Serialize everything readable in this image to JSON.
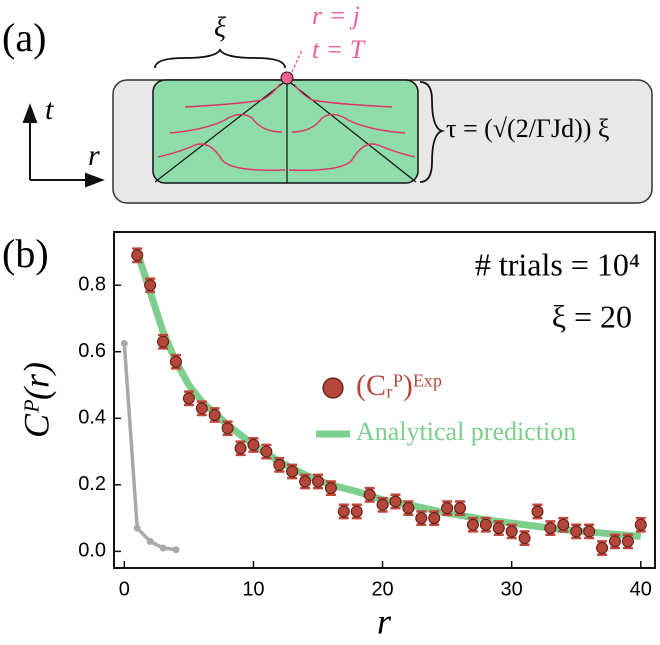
{
  "diagram": {
    "label": "(a)",
    "xi": "ξ",
    "point_label": [
      "r = j",
      "t = T"
    ],
    "t_axis": "t",
    "r_axis": "r",
    "tau": "τ = (√(2/ΓJd)) ξ"
  },
  "chart_data": {
    "type": "scatter",
    "panel_label": "(b)",
    "xlabel": "r",
    "ylabel": "Cᴾ(r)",
    "annotations": [
      "# trials = 10⁴",
      "ξ = 20"
    ],
    "xlim": [
      -0.8,
      41.1
    ],
    "ylim": [
      -0.05,
      0.96
    ],
    "xticks": [
      0,
      10,
      20,
      30,
      40
    ],
    "yticks": [
      {
        "value": 0,
        "label": "0.0"
      },
      0.2,
      0.4,
      0.6,
      0.8
    ],
    "series": [
      {
        "name": "(Cᵣᴾ)ᴱˣᵖ",
        "color": "#b5473a",
        "style": "points",
        "x": [
          1,
          2,
          3,
          4,
          5,
          6,
          7,
          8,
          9,
          10,
          11,
          12,
          13,
          14,
          15,
          16,
          17,
          18,
          19,
          20,
          21,
          22,
          23,
          24,
          25,
          26,
          27,
          28,
          29,
          30,
          31,
          32,
          33,
          34,
          35,
          36,
          37,
          38,
          39,
          40
        ],
        "values": [
          0.89,
          0.8,
          0.63,
          0.57,
          0.46,
          0.43,
          0.41,
          0.37,
          0.31,
          0.32,
          0.3,
          0.26,
          0.24,
          0.21,
          0.21,
          0.19,
          0.12,
          0.12,
          0.17,
          0.14,
          0.15,
          0.13,
          0.1,
          0.1,
          0.13,
          0.13,
          0.08,
          0.08,
          0.07,
          0.06,
          0.04,
          0.12,
          0.07,
          0.08,
          0.06,
          0.06,
          0.01,
          0.03,
          0.03,
          0.08
        ],
        "errors": [
          0.02,
          0.02,
          0.02,
          0.02,
          0.02,
          0.02,
          0.02,
          0.02,
          0.02,
          0.02,
          0.02,
          0.02,
          0.02,
          0.02,
          0.02,
          0.02,
          0.02,
          0.02,
          0.02,
          0.02,
          0.02,
          0.02,
          0.02,
          0.02,
          0.02,
          0.02,
          0.02,
          0.02,
          0.02,
          0.02,
          0.02,
          0.02,
          0.02,
          0.02,
          0.02,
          0.02,
          0.02,
          0.02,
          0.02,
          0.02
        ]
      },
      {
        "name": "Analytical prediction",
        "color": "#7ccf8c",
        "style": "line",
        "x": [
          1,
          2,
          3,
          4,
          5,
          6,
          8,
          10,
          12,
          14,
          16,
          18,
          20,
          22,
          25,
          28,
          31,
          34,
          37,
          40
        ],
        "values": [
          0.9,
          0.78,
          0.66,
          0.57,
          0.5,
          0.45,
          0.38,
          0.32,
          0.27,
          0.23,
          0.2,
          0.18,
          0.155,
          0.14,
          0.115,
          0.095,
          0.08,
          0.065,
          0.055,
          0.045
        ]
      },
      {
        "color": "#a8a8a8",
        "style": "gray",
        "x": [
          0,
          1,
          2,
          3,
          4
        ],
        "values": [
          0.625,
          0.07,
          0.03,
          0.01,
          0.005
        ]
      }
    ]
  }
}
